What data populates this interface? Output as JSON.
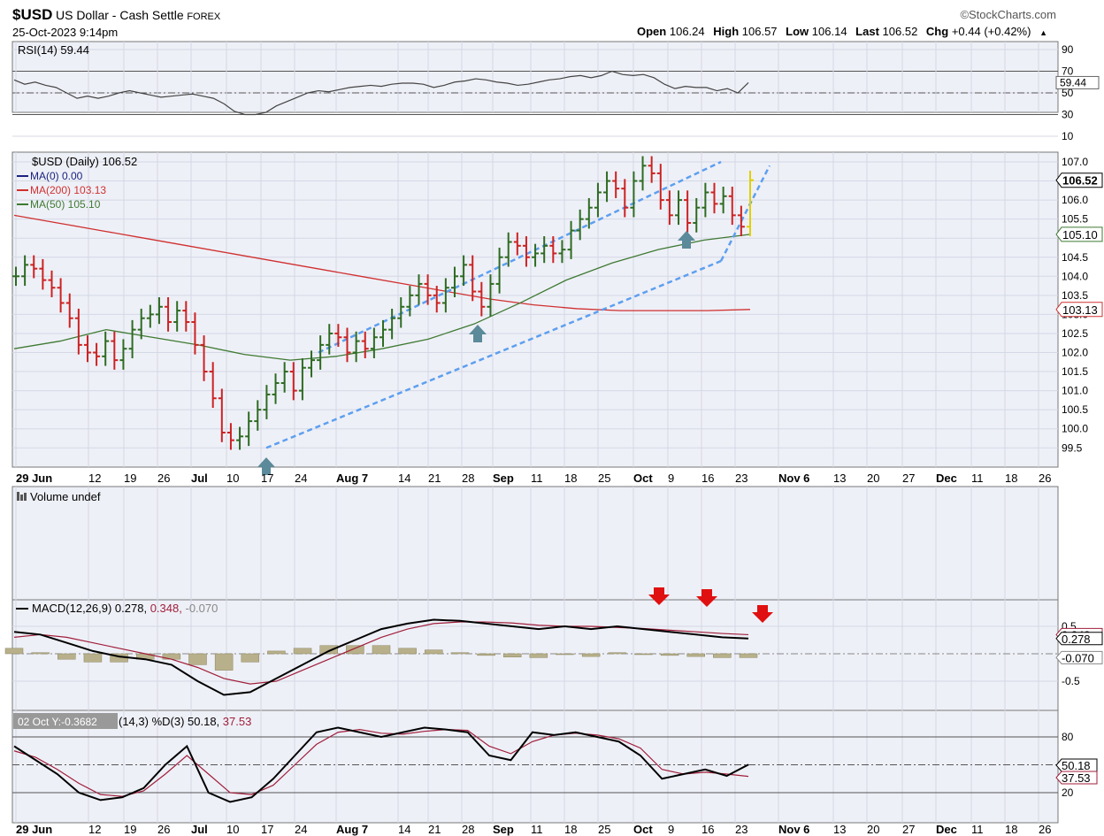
{
  "header": {
    "symbol": "$USD",
    "name": "US Dollar - Cash Settle",
    "exchange": "FOREX",
    "datetime": "25-Oct-2023 9:14pm",
    "logo": "©StockCharts.com",
    "open_label": "Open",
    "open": "106.24",
    "high_label": "High",
    "high": "106.57",
    "low_label": "Low",
    "low": "106.14",
    "last_label": "Last",
    "last": "106.52",
    "chg_label": "Chg",
    "chg": "+0.44 (+0.42%)",
    "chg_icon": "triangle-up-icon"
  },
  "legends": {
    "rsi": "RSI(14) 59.44",
    "price": "$USD (Daily) 106.52",
    "ma0": "MA(0) 0.00",
    "ma200": "MA(200) 103.13",
    "ma50": "MA(50) 105.10",
    "volume": "Volume undef",
    "macd_main": "MACD(12,26,9) 0.278,",
    "macd_signal": "0.348,",
    "macd_hist": "-0.070",
    "sto_tooltip": "02 Oct Y:-0.3682",
    "sto_main": "(14,3) %D(3) 50.18,",
    "sto_signal": "37.53"
  },
  "colors": {
    "panel_bg": "#eef0f7",
    "grid": "#d4d8e6",
    "up_bar": "#2e6b22",
    "down_bar": "#cc2222",
    "ma200": "#d03030",
    "ma50": "#3f7a33",
    "ma0": "#1a237e",
    "channel": "#5d9ff0",
    "arrow_up": "#5b8a9a",
    "arrow_down": "#e01010",
    "hist": "#b8b08a",
    "macd_signal": "#a01e3a"
  },
  "chart_data": [
    {
      "panel": "rsi",
      "type": "line",
      "y_ticks": [
        90,
        70,
        50,
        30,
        10
      ],
      "overbought": 70,
      "oversold": 30,
      "last_label": "59.44",
      "series": [
        {
          "values": [
            62,
            58,
            60,
            57,
            55,
            50,
            45,
            47,
            45,
            47,
            50,
            52,
            50,
            48,
            46,
            47,
            48,
            49,
            47,
            45,
            40,
            33,
            30,
            30,
            32,
            38,
            42,
            46,
            50,
            52,
            51,
            53,
            55,
            56,
            57,
            56,
            58,
            59,
            59,
            58,
            55,
            57,
            60,
            61,
            63,
            62,
            60,
            59,
            57,
            58,
            60,
            62,
            63,
            65,
            66,
            64,
            66,
            70,
            67,
            66,
            67,
            64,
            58,
            54,
            56,
            55,
            55,
            52,
            54,
            50,
            59.44
          ]
        }
      ]
    },
    {
      "panel": "price",
      "type": "ohlc",
      "y_ticks": [
        "107.0",
        "106.5",
        "106.0",
        "105.5",
        "105.0",
        "104.5",
        "104.0",
        "103.5",
        "103.0",
        "102.5",
        "102.0",
        "101.5",
        "101.0",
        "100.5",
        "100.0",
        "99.5"
      ],
      "x_ticks": [
        "29 Jun",
        "12",
        "19",
        "26",
        "Jul",
        "10",
        "17",
        "24",
        "Aug 7",
        "14",
        "21",
        "28",
        "Sep",
        "11",
        "18",
        "25",
        "Oct",
        "9",
        "16",
        "23",
        "Nov 6",
        "13",
        "20",
        "27",
        "Dec",
        "11",
        "18",
        "26"
      ],
      "last_price_label": "106.52",
      "ma50_label": "105.10",
      "ma200_label": "103.13",
      "closes": [
        104.0,
        104.3,
        104.2,
        103.9,
        103.7,
        103.3,
        102.9,
        102.2,
        102.0,
        101.9,
        102.3,
        101.8,
        102.1,
        102.6,
        102.9,
        103.0,
        103.2,
        102.8,
        103.1,
        102.8,
        102.2,
        101.5,
        100.8,
        99.9,
        99.7,
        99.8,
        100.2,
        100.5,
        100.9,
        101.2,
        101.5,
        101.0,
        101.6,
        101.8,
        102.2,
        102.5,
        102.4,
        102.0,
        102.3,
        102.1,
        102.4,
        102.6,
        102.9,
        103.2,
        103.5,
        103.8,
        103.5,
        103.3,
        103.7,
        104.0,
        104.3,
        103.6,
        103.2,
        103.8,
        104.5,
        104.9,
        104.8,
        104.5,
        104.6,
        104.8,
        104.6,
        104.7,
        105.2,
        105.5,
        105.8,
        106.2,
        106.5,
        106.3,
        105.8,
        106.5,
        106.9,
        106.7,
        106.0,
        105.6,
        106.0,
        105.4,
        105.8,
        106.2,
        105.9,
        106.1,
        105.6,
        105.3,
        106.52
      ],
      "ma200_values": [
        105.6,
        105.4,
        105.2,
        105.0,
        104.8,
        104.6,
        104.4,
        104.2,
        104.0,
        103.8,
        103.6,
        103.4,
        103.25,
        103.15,
        103.1,
        103.1,
        103.1,
        103.13
      ],
      "ma50_values": [
        102.1,
        102.3,
        102.6,
        102.4,
        102.2,
        101.95,
        101.8,
        101.9,
        102.1,
        102.35,
        102.75,
        103.3,
        103.9,
        104.35,
        104.7,
        104.95,
        105.1
      ],
      "channel_lines": [
        {
          "from": [
            "Jul 18",
            99.5
          ],
          "to": [
            "Oct 19",
            104.4
          ]
        },
        {
          "from": [
            "Jul 26",
            102.0
          ],
          "to": [
            "Oct 19",
            107.0
          ]
        },
        {
          "from": [
            "Oct 19",
            104.4
          ],
          "to": [
            "Oct 28",
            106.9
          ]
        }
      ],
      "up_arrows": [
        "Jul 18",
        "Aug 30",
        "Oct 12"
      ]
    },
    {
      "panel": "volume",
      "type": "bar",
      "note_label": "Volume undef"
    },
    {
      "panel": "macd",
      "type": "line",
      "y_ticks": [
        "0.5",
        "-0.5"
      ],
      "labels": [
        "0.348",
        "0.278",
        "-0.070"
      ],
      "down_arrows": [
        "Oct 4",
        "Oct 16",
        "Oct 27"
      ],
      "macd": [
        0.4,
        0.35,
        0.2,
        0.05,
        -0.05,
        -0.1,
        -0.2,
        -0.5,
        -0.75,
        -0.7,
        -0.45,
        -0.2,
        0.05,
        0.25,
        0.45,
        0.55,
        0.62,
        0.6,
        0.55,
        0.5,
        0.45,
        0.5,
        0.45,
        0.5,
        0.45,
        0.4,
        0.35,
        0.3,
        0.278
      ],
      "signal": [
        0.3,
        0.35,
        0.3,
        0.2,
        0.1,
        0.0,
        -0.1,
        -0.25,
        -0.45,
        -0.55,
        -0.5,
        -0.3,
        -0.1,
        0.1,
        0.3,
        0.45,
        0.55,
        0.58,
        0.58,
        0.56,
        0.52,
        0.5,
        0.5,
        0.48,
        0.46,
        0.43,
        0.4,
        0.37,
        0.348
      ],
      "histogram": [
        0.1,
        0.02,
        -0.1,
        -0.15,
        -0.15,
        -0.1,
        -0.1,
        -0.2,
        -0.3,
        -0.15,
        0.05,
        0.1,
        0.15,
        0.15,
        0.15,
        0.1,
        0.07,
        0.02,
        -0.03,
        -0.06,
        -0.07,
        0.0,
        -0.05,
        0.02,
        -0.01,
        -0.03,
        -0.05,
        -0.07,
        -0.07
      ]
    },
    {
      "panel": "stochastic",
      "type": "line",
      "y_ticks": [
        80,
        20
      ],
      "labels": [
        "50.18",
        "37.53"
      ],
      "pct_k": [
        70,
        55,
        40,
        20,
        12,
        15,
        25,
        50,
        70,
        20,
        10,
        15,
        35,
        60,
        85,
        90,
        85,
        80,
        85,
        90,
        88,
        85,
        60,
        55,
        85,
        82,
        85,
        80,
        75,
        60,
        35,
        40,
        45,
        38,
        50.18
      ],
      "pct_d": [
        65,
        58,
        45,
        30,
        18,
        16,
        22,
        40,
        60,
        40,
        20,
        18,
        28,
        50,
        72,
        85,
        88,
        84,
        83,
        86,
        88,
        87,
        70,
        62,
        75,
        82,
        84,
        82,
        78,
        68,
        45,
        40,
        42,
        40,
        37.53
      ]
    }
  ]
}
